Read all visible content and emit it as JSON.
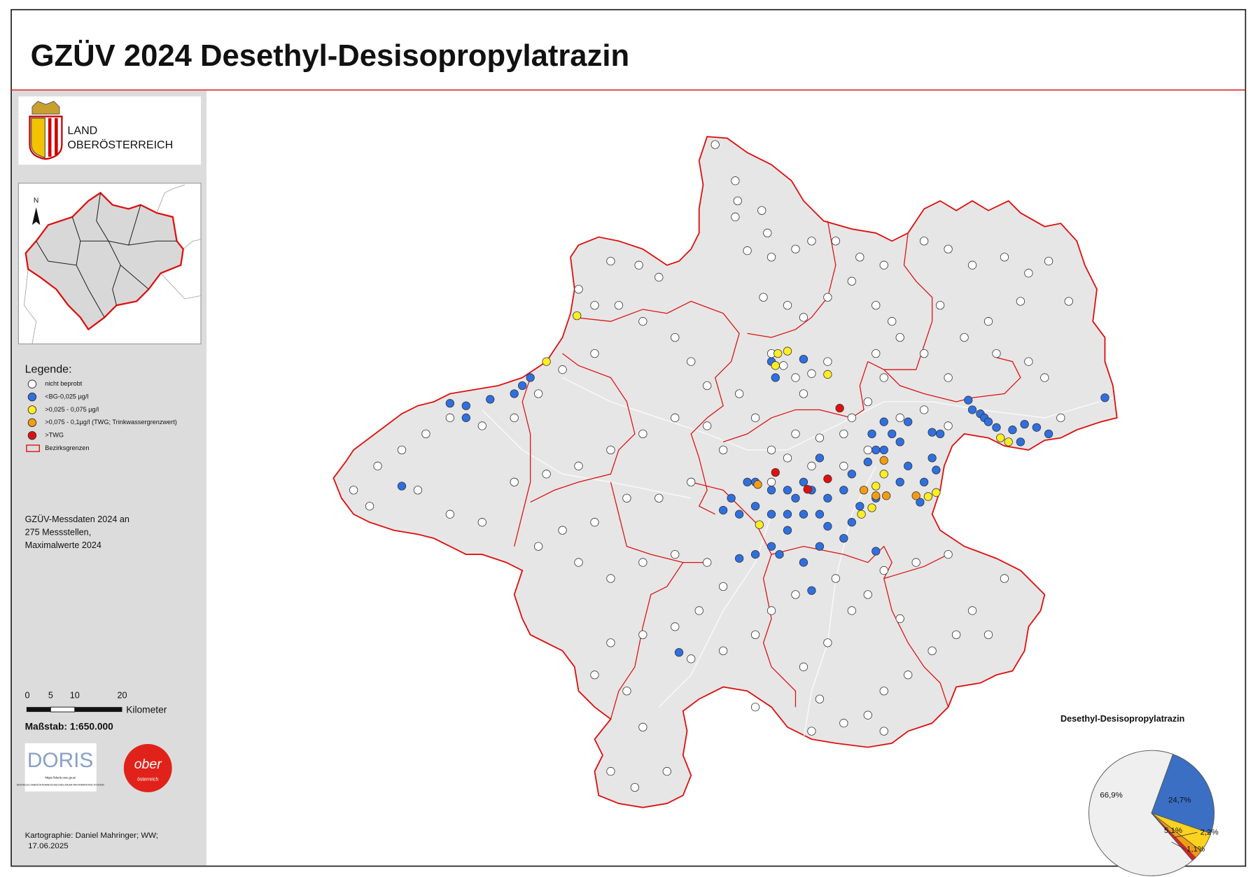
{
  "header": {
    "title": "GZÜV 2024 Desethyl-Desisopropylatrazin"
  },
  "logo": {
    "line1": "LAND",
    "line2": "OBERÖSTERREICH"
  },
  "inset": {
    "north": "N"
  },
  "legend": {
    "title": "Legende:",
    "items": [
      "nicht beprobt",
      "<BG-0,025 µg/l",
      ">0,025 - 0,075 µg/l",
      ">0,075 - 0,1µg/l (TWG; Trinkwassergrenzwert)",
      ">TWG",
      "Bezirksgrenzen"
    ]
  },
  "info": [
    "GZÜV-Messdaten 2024 an",
    "275 Messstellen,",
    "Maximalwerte 2024"
  ],
  "scale": {
    "ticks": [
      "0",
      "5",
      "10",
      "20"
    ],
    "unit": "Kilometer",
    "ratio": "Maßstab: 1:650.000"
  },
  "doris": {
    "name": "DORIS",
    "url": "https://doris.ooe.gv.at",
    "subtitle": "DIGITALES OBERÖSTERREICHISCHES RAUM-INFORMATIONS-SYSTEM"
  },
  "ober": {
    "line1": "ober",
    "line2": "österreich"
  },
  "credits": [
    "Kartographie: Daniel Mahringer; WW;",
    "17.06.2025"
  ],
  "chart_data": {
    "type": "pie",
    "title": "Desethyl-Desisopropylatrazin",
    "values": [
      66.9,
      24.7,
      5.1,
      2.2,
      1.1
    ],
    "value_labels": [
      "66,9%",
      "24,7%",
      "5,1%",
      "2,2%",
      "1,1%"
    ],
    "colors": [
      "#efefef",
      "#3b6fc4",
      "#ffd21f",
      "#f39c12",
      "#e02020"
    ]
  }
}
